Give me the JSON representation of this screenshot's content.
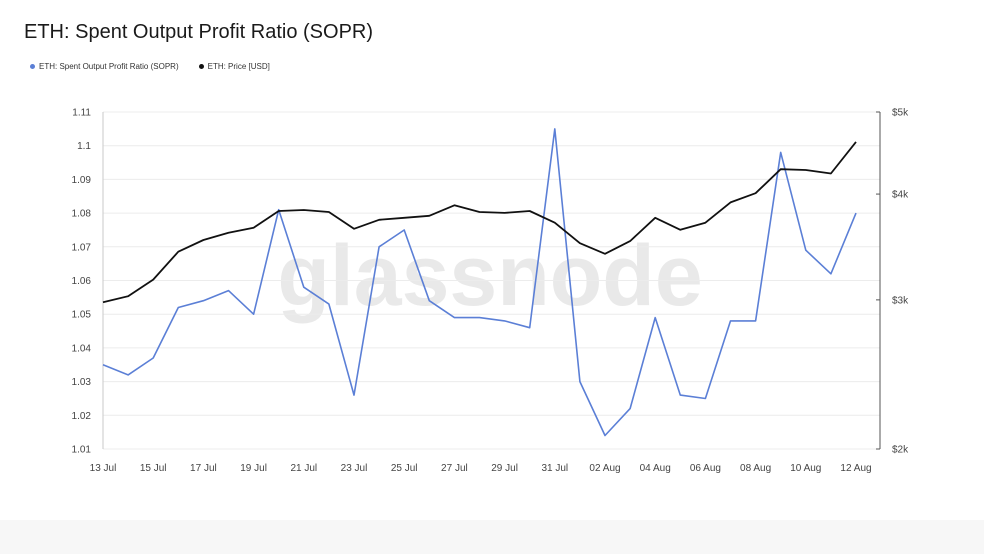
{
  "chart_data": {
    "type": "line",
    "title": "ETH: Spent Output Profit Ratio (SOPR)",
    "watermark": "glassnode",
    "x_tick_labels": [
      "13 Jul",
      "15 Jul",
      "17 Jul",
      "19 Jul",
      "21 Jul",
      "23 Jul",
      "25 Jul",
      "27 Jul",
      "29 Jul",
      "31 Jul",
      "02 Aug",
      "04 Aug",
      "06 Aug",
      "08 Aug",
      "10 Aug",
      "12 Aug"
    ],
    "y_left": {
      "ticks": [
        "1.01",
        "1.02",
        "1.03",
        "1.04",
        "1.05",
        "1.06",
        "1.07",
        "1.08",
        "1.09",
        "1.1",
        "1.11"
      ],
      "range": [
        1.01,
        1.11
      ]
    },
    "y_right": {
      "ticks": [
        "$2k",
        "$3k",
        "$4k",
        "$5k"
      ],
      "tick_values": [
        2000,
        3000,
        4000,
        5000
      ],
      "scale": "log",
      "range": [
        2000,
        5000
      ]
    },
    "dates": [
      "13 Jul",
      "14 Jul",
      "15 Jul",
      "16 Jul",
      "17 Jul",
      "18 Jul",
      "19 Jul",
      "20 Jul",
      "21 Jul",
      "22 Jul",
      "23 Jul",
      "24 Jul",
      "25 Jul",
      "26 Jul",
      "27 Jul",
      "28 Jul",
      "29 Jul",
      "30 Jul",
      "31 Jul",
      "01 Aug",
      "02 Aug",
      "03 Aug",
      "04 Aug",
      "05 Aug",
      "06 Aug",
      "07 Aug",
      "08 Aug",
      "09 Aug",
      "10 Aug",
      "11 Aug",
      "12 Aug"
    ],
    "series": [
      {
        "name": "ETH: Spent Output Profit Ratio (SOPR)",
        "axis": "left",
        "color": "#5b7fd6",
        "values": [
          1.035,
          1.032,
          1.037,
          1.052,
          1.054,
          1.057,
          1.05,
          1.081,
          1.058,
          1.053,
          1.026,
          1.07,
          1.075,
          1.054,
          1.049,
          1.049,
          1.048,
          1.046,
          1.105,
          1.03,
          1.014,
          1.022,
          1.049,
          1.026,
          1.025,
          1.048,
          1.048,
          1.098,
          1.069,
          1.062,
          1.08
        ]
      },
      {
        "name": "ETH: Price [USD]",
        "axis": "right",
        "color": "#111111",
        "values": [
          2980,
          3030,
          3170,
          3420,
          3530,
          3600,
          3650,
          3820,
          3830,
          3810,
          3640,
          3730,
          3750,
          3770,
          3880,
          3810,
          3800,
          3820,
          3700,
          3500,
          3400,
          3520,
          3750,
          3630,
          3700,
          3910,
          4010,
          4280,
          4270,
          4230,
          4610
        ]
      }
    ]
  }
}
